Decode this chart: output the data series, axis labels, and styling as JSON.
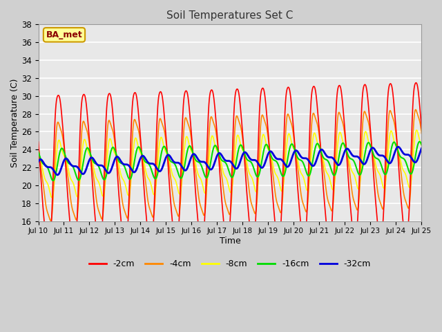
{
  "title": "Soil Temperatures Set C",
  "xlabel": "Time",
  "ylabel": "Soil Temperature (C)",
  "ylim": [
    16,
    38
  ],
  "xlim": [
    0,
    360
  ],
  "plot_bg_color": "#e8e8e8",
  "fig_bg_color": "#d0d0d0",
  "series_colors": {
    "-2cm": "#ff0000",
    "-4cm": "#ff8800",
    "-8cm": "#ffff00",
    "-16cm": "#00dd00",
    "-32cm": "#0000dd"
  },
  "series_linewidths": {
    "-2cm": 1.2,
    "-4cm": 1.2,
    "-8cm": 1.2,
    "-16cm": 1.5,
    "-32cm": 2.0
  },
  "xtick_positions": [
    0,
    24,
    48,
    72,
    96,
    120,
    144,
    168,
    192,
    216,
    240,
    264,
    288,
    312,
    336,
    360
  ],
  "xtick_labels": [
    "Jul 10",
    "Jul 11",
    "Jul 12",
    "Jul 13",
    "Jul 14",
    "Jul 15",
    "Jul 16",
    "Jul 17",
    "Jul 18",
    "Jul 19",
    "Jul 20",
    "Jul 21",
    "Jul 22",
    "Jul 23",
    "Jul 24",
    "Jul 25"
  ],
  "ytick_positions": [
    16,
    18,
    20,
    22,
    24,
    26,
    28,
    30,
    32,
    34,
    36,
    38
  ],
  "legend_labels": [
    "-2cm",
    "-4cm",
    "-8cm",
    "-16cm",
    "-32cm"
  ],
  "annotation_text": "BA_met",
  "annotation_bbox": {
    "facecolor": "#ffff99",
    "edgecolor": "#cc9900",
    "linewidth": 1.5
  }
}
